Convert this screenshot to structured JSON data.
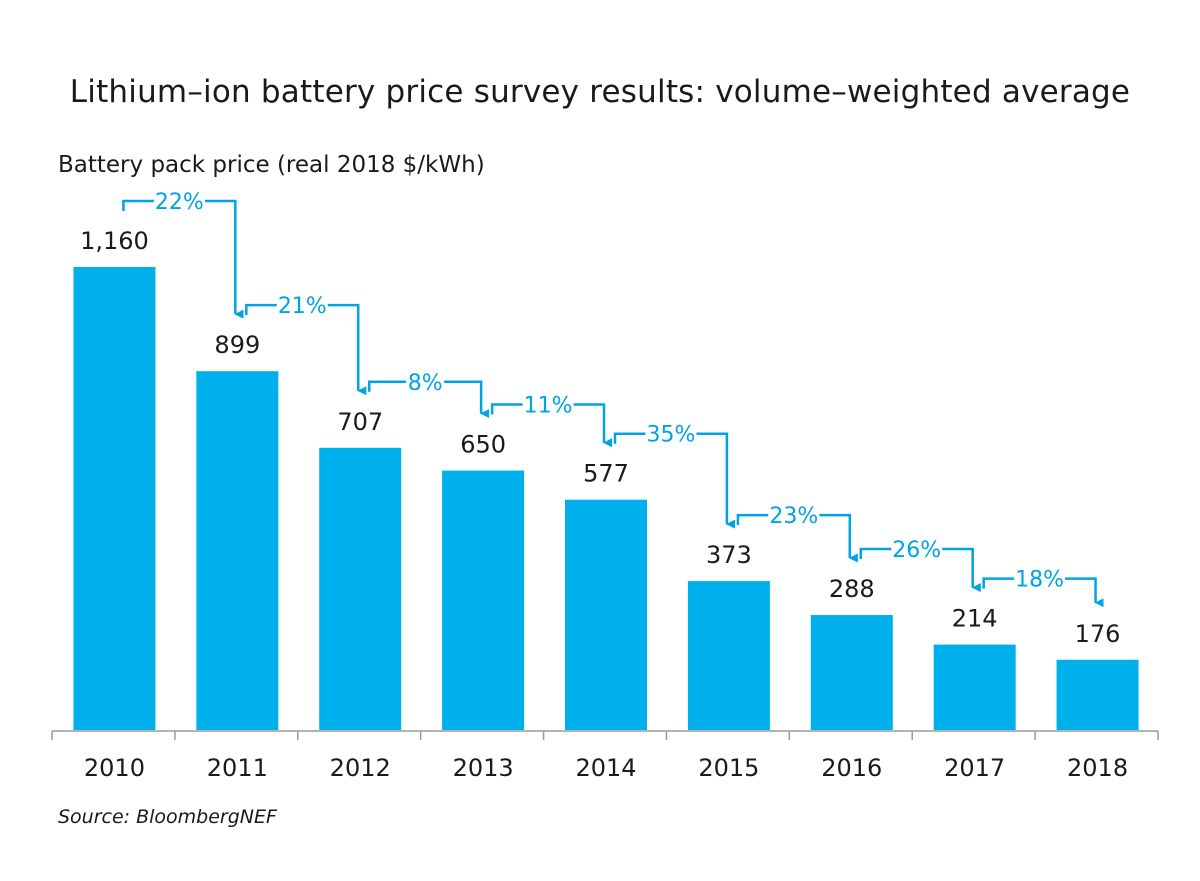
{
  "title": "Lithium–ion battery price survey results: volume–weighted average",
  "ylabel": "Battery pack price (real 2018 $/kWh)",
  "source": "Source: BloombergNEF",
  "colors": {
    "bar": "#00b0ec",
    "annotation": "#00a3e4",
    "axis": "#9a9a9a",
    "text": "#1a1a1a"
  },
  "chart_data": {
    "type": "bar",
    "categories": [
      "2010",
      "2011",
      "2012",
      "2013",
      "2014",
      "2015",
      "2016",
      "2017",
      "2018"
    ],
    "values": [
      1160,
      899,
      707,
      650,
      577,
      373,
      288,
      214,
      176
    ],
    "value_labels": [
      "1,160",
      "899",
      "707",
      "650",
      "577",
      "373",
      "288",
      "214",
      "176"
    ],
    "declines": [
      "22%",
      "21%",
      "8%",
      "11%",
      "35%",
      "23%",
      "26%",
      "18%"
    ],
    "ylim": [
      0,
      1160
    ],
    "grid": false,
    "legend": "none"
  }
}
